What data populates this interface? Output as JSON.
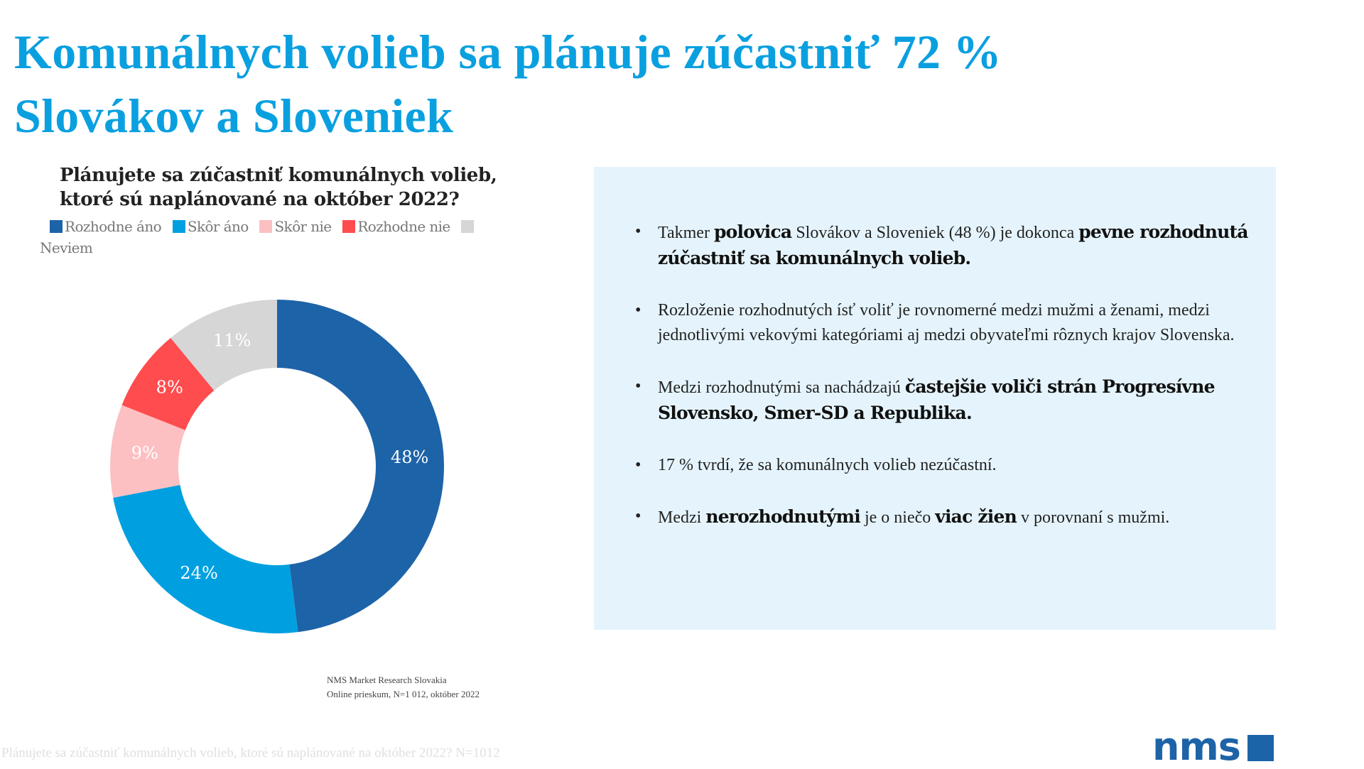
{
  "slide": {
    "title_line1": "Komunálnych volieb sa plánuje zúčastniť 72 %",
    "title_line2": "Slovákov a Sloveniek",
    "colors": {
      "title": "#0AA0E0",
      "panel_bg": "#E5F4FC",
      "brand": "#1D63A8"
    }
  },
  "chart_data": {
    "type": "pie",
    "subtype": "donut",
    "title": "Plánujete sa zúčastniť komunálnych volieb, ktoré sú naplánované na október 2022?",
    "title_line1": "Plánujete sa zúčastniť komunálnych volieb,",
    "title_line2": "ktoré sú naplánované na október 2022?",
    "categories": [
      "Rozhodne áno",
      "Skôr áno",
      "Skôr nie",
      "Rozhodne nie",
      "Neviem"
    ],
    "values": [
      48,
      24,
      9,
      8,
      11
    ],
    "labels": [
      "48%",
      "24%",
      "9%",
      "8%",
      "11%"
    ],
    "colors": [
      "#1D63A8",
      "#00A0E0",
      "#FCC0C2",
      "#FF4C4F",
      "#D6D6D6"
    ],
    "unit": "%",
    "start_angle": "12 o'clock, clockwise",
    "legend_position": "top",
    "legend": [
      {
        "label": "Rozhodne áno",
        "color": "#1D63A8"
      },
      {
        "label": "Skôr áno",
        "color": "#00A0E0"
      },
      {
        "label": "Skôr nie",
        "color": "#FCC0C2"
      },
      {
        "label": "Rozhodne nie",
        "color": "#FF4C4F"
      },
      {
        "label": "Neviem",
        "color": "#D6D6D6"
      }
    ],
    "source_line1": "NMS Market Research Slovakia",
    "source_line2": "Online prieskum, N=1 012, október 2022"
  },
  "panel": {
    "bullets": [
      {
        "parts": [
          {
            "t": "Takmer ",
            "b": false
          },
          {
            "t": "polovica",
            "b": true
          },
          {
            "t": " Slovákov a Sloveniek (48 %) je dokonca ",
            "b": false
          },
          {
            "t": "pevne rozhodnutá zúčastniť sa komunálnych volieb.",
            "b": true
          }
        ]
      },
      {
        "parts": [
          {
            "t": "Rozloženie rozhodnutých ísť voliť je rovnomerné medzi mužmi a ženami, medzi jednotlivými vekovými kategóriami aj medzi obyvateľmi rôznych krajov Slovenska.",
            "b": false
          }
        ]
      },
      {
        "parts": [
          {
            "t": "Medzi rozhodnutými sa nachádzajú ",
            "b": false
          },
          {
            "t": "častejšie voliči strán Progresívne Slovensko, Smer-SD a Republika.",
            "b": true
          }
        ]
      },
      {
        "parts": [
          {
            "t": "17 % tvrdí, že sa komunálnych volieb nezúčastní.",
            "b": false
          }
        ]
      },
      {
        "parts": [
          {
            "t": "Medzi ",
            "b": false
          },
          {
            "t": "nerozhodnutými",
            "b": true
          },
          {
            "t": " je o niečo ",
            "b": false
          },
          {
            "t": "viac žien",
            "b": true
          },
          {
            "t": " v porovnaní s mužmi.",
            "b": false
          }
        ]
      }
    ]
  },
  "footer": {
    "note": "Plánujete sa zúčastniť komunálnych volieb, ktoré sú naplánované na október 2022? N=1012",
    "logo_text": "nms"
  }
}
